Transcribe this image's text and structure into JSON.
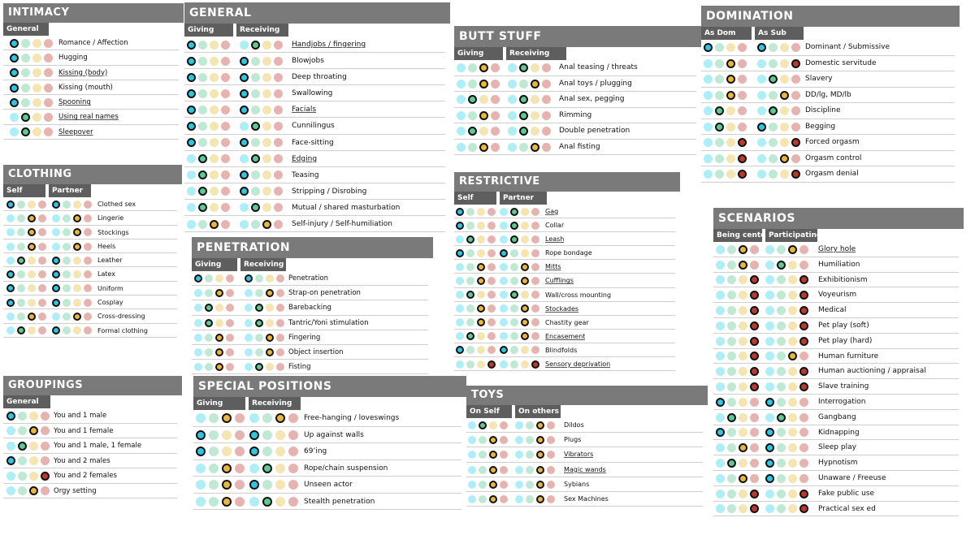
{
  "colors": {
    "header_bg": "#7a7a7a",
    "subheader_bg": "#5e5e5e",
    "fav_cyan": "#2fc6e4",
    "like_green": "#5ec896",
    "indifferent_yellow": "#eab73a",
    "limit_red": "#b83a2e"
  },
  "sections": [
    {
      "id": "intimacy",
      "title": "INTIMACY",
      "cols": [
        "General"
      ],
      "items": [
        {
          "label": "Romance / Affection",
          "sel": [
            0
          ],
          "u": false
        },
        {
          "label": "Hugging",
          "sel": [
            0
          ],
          "u": false
        },
        {
          "label": "Kissing (body)",
          "sel": [
            0
          ],
          "u": true
        },
        {
          "label": "Kissing (mouth)",
          "sel": [
            0
          ],
          "u": false
        },
        {
          "label": "Spooning",
          "sel": [
            0
          ],
          "u": true
        },
        {
          "label": "Using real names",
          "sel": [
            1
          ],
          "u": true
        },
        {
          "label": "Sleepover",
          "sel": [
            1
          ],
          "u": true
        }
      ]
    },
    {
      "id": "clothing",
      "title": "CLOTHING",
      "cols": [
        "Self",
        "Partner"
      ],
      "items": [
        {
          "label": "Clothed sex",
          "sel": [
            0,
            0
          ],
          "u": false
        },
        {
          "label": "Lingerie",
          "sel": [
            2,
            2
          ],
          "u": false
        },
        {
          "label": "Stockings",
          "sel": [
            2,
            2
          ],
          "u": false
        },
        {
          "label": "Heels",
          "sel": [
            2,
            2
          ],
          "u": false
        },
        {
          "label": "Leather",
          "sel": [
            1,
            0
          ],
          "u": false
        },
        {
          "label": "Latex",
          "sel": [
            0,
            0
          ],
          "u": false
        },
        {
          "label": "Uniform",
          "sel": [
            0,
            0
          ],
          "u": false
        },
        {
          "label": "Cosplay",
          "sel": [
            0,
            0
          ],
          "u": false
        },
        {
          "label": "Cross-dressing",
          "sel": [
            2,
            2
          ],
          "u": false
        },
        {
          "label": "Formal clothing",
          "sel": [
            1,
            0
          ],
          "u": false
        }
      ]
    },
    {
      "id": "groupings",
      "title": "GROUPINGS",
      "cols": [
        "General"
      ],
      "items": [
        {
          "label": "You and 1 male",
          "sel": [
            0
          ],
          "u": false
        },
        {
          "label": "You and 1 female",
          "sel": [
            2
          ],
          "u": false
        },
        {
          "label": "You and 1 male, 1 female",
          "sel": [
            1
          ],
          "u": false
        },
        {
          "label": "You and 2 males",
          "sel": [
            0
          ],
          "u": false
        },
        {
          "label": "You and 2 females",
          "sel": [
            3
          ],
          "u": false
        },
        {
          "label": "Orgy setting",
          "sel": [
            2
          ],
          "u": false
        }
      ]
    },
    {
      "id": "general",
      "title": "GENERAL",
      "cols": [
        "Giving",
        "Receiving"
      ],
      "items": [
        {
          "label": "Handjobs / fingering",
          "sel": [
            0,
            1
          ],
          "u": true
        },
        {
          "label": "Blowjobs",
          "sel": [
            0,
            0
          ],
          "u": false
        },
        {
          "label": "Deep throating",
          "sel": [
            0,
            0
          ],
          "u": false
        },
        {
          "label": "Swallowing",
          "sel": [
            0,
            0
          ],
          "u": false
        },
        {
          "label": "Facials",
          "sel": [
            0,
            0
          ],
          "u": true
        },
        {
          "label": "Cunnilingus",
          "sel": [
            0,
            1
          ],
          "u": false
        },
        {
          "label": "Face-sitting",
          "sel": [
            0,
            0
          ],
          "u": false
        },
        {
          "label": "Edging",
          "sel": [
            1,
            1
          ],
          "u": true
        },
        {
          "label": "Teasing",
          "sel": [
            1,
            0
          ],
          "u": false
        },
        {
          "label": "Stripping / Disrobing",
          "sel": [
            1,
            0
          ],
          "u": false
        },
        {
          "label": "Mutual / shared masturbation",
          "sel": [
            1,
            1
          ],
          "u": false
        },
        {
          "label": "Self-injury / Self-humiliation",
          "sel": [
            2,
            2
          ],
          "u": false
        }
      ]
    },
    {
      "id": "penetration",
      "title": "PENETRATION",
      "cols": [
        "Giving",
        "Receiving"
      ],
      "items": [
        {
          "label": "Penetration",
          "sel": [
            0,
            0
          ],
          "u": false
        },
        {
          "label": "Strap-on penetration",
          "sel": [
            2,
            2
          ],
          "u": false
        },
        {
          "label": "Barebacking",
          "sel": [
            1,
            1
          ],
          "u": false
        },
        {
          "label": "Tantric/Yoni stimulation",
          "sel": [
            1,
            1
          ],
          "u": false
        },
        {
          "label": "Fingering",
          "sel": [
            2,
            2
          ],
          "u": false
        },
        {
          "label": "Object insertion",
          "sel": [
            2,
            2
          ],
          "u": false
        },
        {
          "label": "Fisting",
          "sel": [
            2,
            1
          ],
          "u": false
        }
      ]
    },
    {
      "id": "special",
      "title": "SPECIAL POSITIONS",
      "cols": [
        "Giving",
        "Receiving"
      ],
      "items": [
        {
          "label": "Free-hanging / loveswings",
          "sel": [
            2,
            2
          ],
          "u": false
        },
        {
          "label": "Up against walls",
          "sel": [
            0,
            0
          ],
          "u": false
        },
        {
          "label": "69’ing",
          "sel": [
            0,
            0
          ],
          "u": false
        },
        {
          "label": "Rope/chain suspension",
          "sel": [
            2,
            1
          ],
          "u": false
        },
        {
          "label": "Unseen actor",
          "sel": [
            2,
            0
          ],
          "u": false
        },
        {
          "label": "Stealth penetration",
          "sel": [
            2,
            1
          ],
          "u": false
        }
      ]
    },
    {
      "id": "butt",
      "title": "BUTT STUFF",
      "cols": [
        "Giving",
        "Receiving"
      ],
      "items": [
        {
          "label": "Anal teasing / threats",
          "sel": [
            2,
            1
          ],
          "u": false
        },
        {
          "label": "Anal toys / plugging",
          "sel": [
            2,
            2
          ],
          "u": false
        },
        {
          "label": "Anal sex, pegging",
          "sel": [
            1,
            1
          ],
          "u": false
        },
        {
          "label": "Rimming",
          "sel": [
            2,
            1
          ],
          "u": false
        },
        {
          "label": "Double penetration",
          "sel": [
            1,
            1
          ],
          "u": false
        },
        {
          "label": "Anal fisting",
          "sel": [
            2,
            2
          ],
          "u": false
        }
      ]
    },
    {
      "id": "restrictive",
      "title": "RESTRICTIVE",
      "cols": [
        "Self",
        "Partner"
      ],
      "items": [
        {
          "label": "Gag",
          "sel": [
            0,
            1
          ],
          "u": true
        },
        {
          "label": "Collar",
          "sel": [
            0,
            1
          ],
          "u": false
        },
        {
          "label": "Leash",
          "sel": [
            1,
            1
          ],
          "u": true
        },
        {
          "label": "Rope bondage",
          "sel": [
            0,
            0
          ],
          "u": false
        },
        {
          "label": "Mitts",
          "sel": [
            2,
            2
          ],
          "u": true
        },
        {
          "label": "Cufflings",
          "sel": [
            2,
            2
          ],
          "u": true
        },
        {
          "label": "Wall/cross mounting",
          "sel": [
            1,
            1
          ],
          "u": false
        },
        {
          "label": "Stockades",
          "sel": [
            2,
            2
          ],
          "u": true
        },
        {
          "label": "Chastity gear",
          "sel": [
            2,
            2
          ],
          "u": false
        },
        {
          "label": "Encasement",
          "sel": [
            1,
            2
          ],
          "u": true
        },
        {
          "label": "Blindfolds",
          "sel": [
            0,
            0
          ],
          "u": false
        },
        {
          "label": "Sensory deprivation",
          "sel": [
            3,
            3
          ],
          "u": true
        }
      ]
    },
    {
      "id": "toys",
      "title": "TOYS",
      "cols": [
        "On Self",
        "On others"
      ],
      "items": [
        {
          "label": "Dildos",
          "sel": [
            1,
            2
          ],
          "u": false
        },
        {
          "label": "Plugs",
          "sel": [
            2,
            2
          ],
          "u": false
        },
        {
          "label": "Vibrators",
          "sel": [
            2,
            2
          ],
          "u": true
        },
        {
          "label": "Magic wands",
          "sel": [
            2,
            2
          ],
          "u": true
        },
        {
          "label": "Sybians",
          "sel": [
            2,
            2
          ],
          "u": false
        },
        {
          "label": "Sex Machines",
          "sel": [
            2,
            2
          ],
          "u": false
        }
      ]
    },
    {
      "id": "domination",
      "title": "DOMINATION",
      "cols": [
        "As Dom",
        "As Sub"
      ],
      "items": [
        {
          "label": "Dominant / Submissive",
          "sel": [
            0,
            0
          ],
          "u": false
        },
        {
          "label": "Domestic servitude",
          "sel": [
            2,
            3
          ],
          "u": false
        },
        {
          "label": "Slavery",
          "sel": [
            2,
            1
          ],
          "u": false
        },
        {
          "label": "DD/lg, MD/lb",
          "sel": [
            2,
            2
          ],
          "u": false
        },
        {
          "label": "Discipline",
          "sel": [
            1,
            1
          ],
          "u": false
        },
        {
          "label": "Begging",
          "sel": [
            1,
            0
          ],
          "u": false
        },
        {
          "label": "Forced orgasm",
          "sel": [
            3,
            3
          ],
          "u": false
        },
        {
          "label": "Orgasm control",
          "sel": [
            3,
            2
          ],
          "u": false
        },
        {
          "label": "Orgasm denial",
          "sel": [
            3,
            3
          ],
          "u": false
        }
      ]
    },
    {
      "id": "scenarios",
      "title": "SCENARIOS",
      "cols": [
        "Being center",
        "Participating"
      ],
      "items": [
        {
          "label": "Glory hole",
          "sel": [
            2,
            2
          ],
          "u": true
        },
        {
          "label": "Humiliation",
          "sel": [
            2,
            1
          ],
          "u": false
        },
        {
          "label": "Exhibitionism",
          "sel": [
            3,
            3
          ],
          "u": false
        },
        {
          "label": "Voyeurism",
          "sel": [
            3,
            3
          ],
          "u": false
        },
        {
          "label": "Medical",
          "sel": [
            3,
            3
          ],
          "u": false
        },
        {
          "label": "Pet play (soft)",
          "sel": [
            3,
            3
          ],
          "u": false
        },
        {
          "label": "Pet play (hard)",
          "sel": [
            3,
            3
          ],
          "u": false
        },
        {
          "label": "Human furniture",
          "sel": [
            3,
            2
          ],
          "u": false
        },
        {
          "label": "Human auctioning / appraisal",
          "sel": [
            3,
            3
          ],
          "u": false
        },
        {
          "label": "Slave training",
          "sel": [
            3,
            3
          ],
          "u": false
        },
        {
          "label": "Interrogation",
          "sel": [
            0,
            0
          ],
          "u": false
        },
        {
          "label": "Gangbang",
          "sel": [
            1,
            1
          ],
          "u": false
        },
        {
          "label": "Kidnapping",
          "sel": [
            0,
            0
          ],
          "u": false
        },
        {
          "label": "Sleep play",
          "sel": [
            2,
            0
          ],
          "u": false
        },
        {
          "label": "Hypnotism",
          "sel": [
            1,
            0
          ],
          "u": false
        },
        {
          "label": "Unaware / Freeuse",
          "sel": [
            2,
            0
          ],
          "u": false
        },
        {
          "label": "Fake public use",
          "sel": [
            3,
            3
          ],
          "u": false
        },
        {
          "label": "Practical sex ed",
          "sel": [
            3,
            3
          ],
          "u": false
        }
      ]
    }
  ]
}
